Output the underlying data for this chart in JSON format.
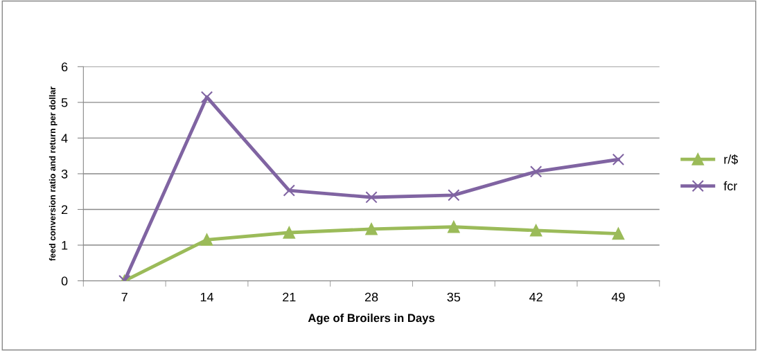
{
  "chart_data": {
    "type": "line",
    "xlabel": "Age of Broilers in Days",
    "ylabel": "feed conversion ratio and return per dollar",
    "categories": [
      "7",
      "14",
      "21",
      "28",
      "35",
      "42",
      "49"
    ],
    "series": [
      {
        "name": "r/$",
        "color": "#9bbb59",
        "marker": "triangle",
        "values": [
          0,
          1.15,
          1.35,
          1.45,
          1.51,
          1.41,
          1.32
        ]
      },
      {
        "name": "fcr",
        "color": "#8064a2",
        "marker": "cross",
        "values": [
          0,
          5.15,
          2.53,
          2.34,
          2.4,
          3.06,
          3.4
        ]
      }
    ],
    "ylim": [
      0,
      6
    ],
    "yticks": [
      0,
      1,
      2,
      3,
      4,
      5,
      6
    ],
    "grid": "y",
    "legend": "right",
    "line_style": "solid"
  }
}
